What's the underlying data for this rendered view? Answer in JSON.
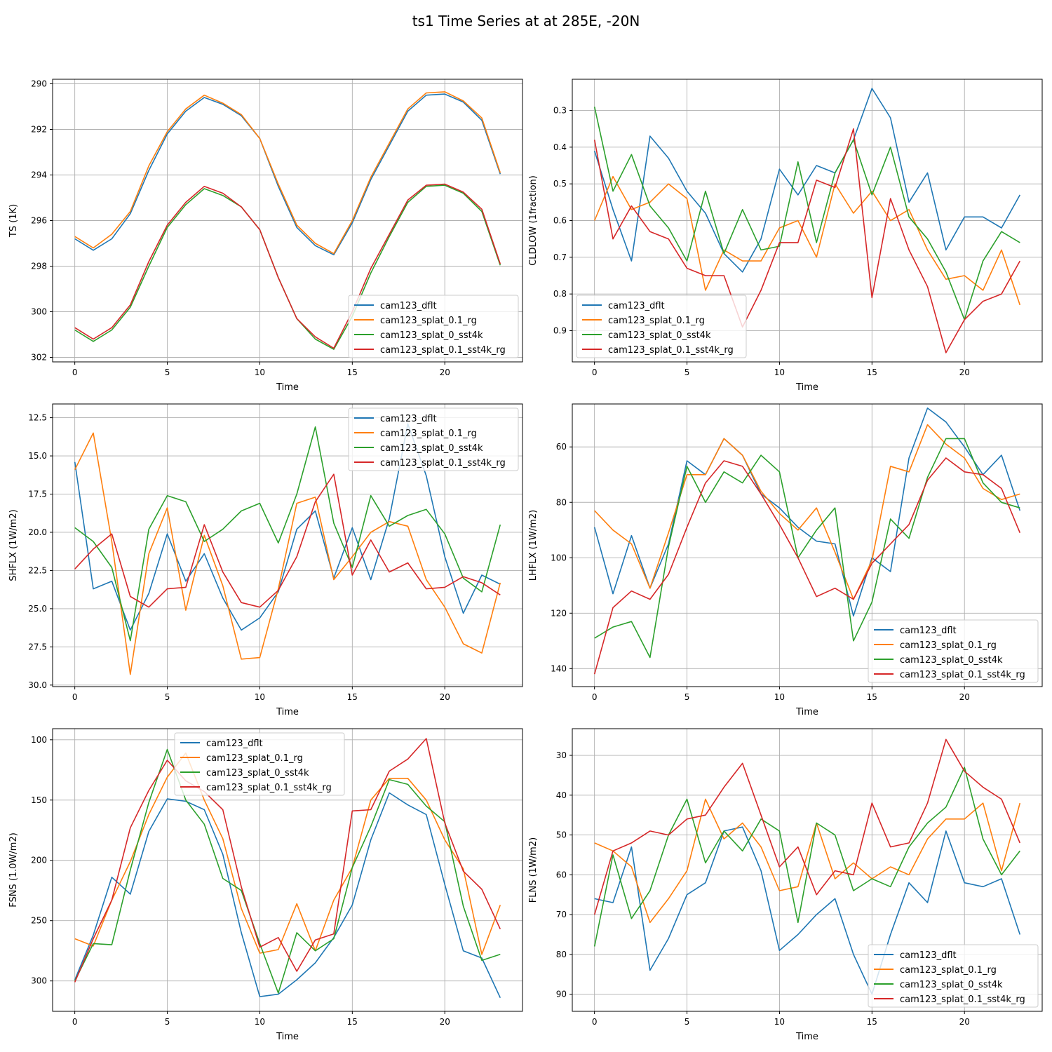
{
  "figure": {
    "title": "ts1 Time Series at at 285E, -20N"
  },
  "series_colors": [
    "#1f77b4",
    "#ff7f0e",
    "#2ca02c",
    "#d62728"
  ],
  "chart_data": [
    {
      "type": "line",
      "ylabel": "TS (1K)",
      "xlabel": "Time",
      "ylim": [
        302.2,
        289.8
      ],
      "y_inverted": true,
      "yticks": [
        290,
        292,
        294,
        296,
        298,
        300,
        302
      ],
      "yticklabels": [
        "290",
        "292",
        "294",
        "296",
        "298",
        "300",
        "302"
      ],
      "xlim": [
        -1.2,
        24.2
      ],
      "xticks": [
        0,
        5,
        10,
        15,
        20
      ],
      "xticklabels": [
        "0",
        "5",
        "10",
        "15",
        "20"
      ],
      "legend_loc": "lower-right",
      "x": [
        0,
        1,
        2,
        3,
        4,
        5,
        6,
        7,
        8,
        9,
        10,
        11,
        12,
        13,
        14,
        15,
        16,
        17,
        18,
        19,
        20,
        21,
        22,
        23
      ],
      "series": [
        {
          "name": "cam123_dflt",
          "values": [
            296.8,
            297.3,
            296.8,
            295.7,
            293.8,
            292.2,
            291.2,
            290.6,
            290.9,
            291.4,
            292.4,
            294.5,
            296.3,
            297.1,
            297.5,
            296.1,
            294.2,
            292.7,
            291.2,
            290.5,
            290.45,
            290.8,
            291.6,
            293.96
          ]
        },
        {
          "name": "cam123_splat_0.1_rg",
          "values": [
            296.7,
            297.2,
            296.6,
            295.6,
            293.6,
            292.1,
            291.1,
            290.5,
            290.85,
            291.35,
            292.4,
            294.4,
            296.2,
            297.0,
            297.45,
            296.0,
            294.1,
            292.6,
            291.1,
            290.4,
            290.35,
            290.75,
            291.5,
            293.9
          ]
        },
        {
          "name": "cam123_splat_0_sst4k",
          "values": [
            300.8,
            301.3,
            300.8,
            299.8,
            298.0,
            296.3,
            295.3,
            294.6,
            294.9,
            295.4,
            296.4,
            298.5,
            300.3,
            301.2,
            301.65,
            300.2,
            298.3,
            296.7,
            295.2,
            294.5,
            294.45,
            294.8,
            295.6,
            297.96
          ]
        },
        {
          "name": "cam123_splat_0.1_sst4k_rg",
          "values": [
            300.7,
            301.2,
            300.7,
            299.7,
            297.8,
            296.2,
            295.2,
            294.5,
            294.8,
            295.4,
            296.4,
            298.5,
            300.3,
            301.1,
            301.6,
            300.0,
            298.1,
            296.6,
            295.1,
            294.45,
            294.4,
            294.75,
            295.5,
            297.9
          ]
        }
      ]
    },
    {
      "type": "line",
      "ylabel": "CLDLOW (1fraction)",
      "xlabel": "Time",
      "ylim": [
        0.985,
        0.215
      ],
      "y_inverted": true,
      "yticks": [
        0.3,
        0.4,
        0.5,
        0.6,
        0.7,
        0.8,
        0.9
      ],
      "yticklabels": [
        "0.3",
        "0.4",
        "0.5",
        "0.6",
        "0.7",
        "0.8",
        "0.9"
      ],
      "xlim": [
        -1.2,
        24.2
      ],
      "xticks": [
        0,
        5,
        10,
        15,
        20
      ],
      "xticklabels": [
        "0",
        "5",
        "10",
        "15",
        "20"
      ],
      "legend_loc": "lower-left",
      "x": [
        0,
        1,
        2,
        3,
        4,
        5,
        6,
        7,
        8,
        9,
        10,
        11,
        12,
        13,
        14,
        15,
        16,
        17,
        18,
        19,
        20,
        21,
        22,
        23
      ],
      "series": [
        {
          "name": "cam123_dflt",
          "values": [
            0.41,
            0.57,
            0.71,
            0.37,
            0.43,
            0.52,
            0.58,
            0.69,
            0.74,
            0.65,
            0.46,
            0.53,
            0.45,
            0.47,
            0.38,
            0.24,
            0.32,
            0.55,
            0.47,
            0.68,
            0.59,
            0.59,
            0.62,
            0.53
          ]
        },
        {
          "name": "cam123_splat_0.1_rg",
          "values": [
            0.6,
            0.48,
            0.57,
            0.55,
            0.5,
            0.54,
            0.79,
            0.68,
            0.71,
            0.71,
            0.62,
            0.6,
            0.7,
            0.5,
            0.58,
            0.52,
            0.6,
            0.57,
            0.68,
            0.76,
            0.75,
            0.79,
            0.68,
            0.83
          ]
        },
        {
          "name": "cam123_splat_0_sst4k",
          "values": [
            0.29,
            0.52,
            0.42,
            0.56,
            0.62,
            0.71,
            0.52,
            0.69,
            0.57,
            0.68,
            0.67,
            0.44,
            0.66,
            0.47,
            0.38,
            0.53,
            0.4,
            0.59,
            0.65,
            0.74,
            0.87,
            0.71,
            0.63,
            0.66
          ]
        },
        {
          "name": "cam123_splat_0.1_sst4k_rg",
          "values": [
            0.38,
            0.65,
            0.56,
            0.63,
            0.65,
            0.73,
            0.75,
            0.75,
            0.89,
            0.79,
            0.66,
            0.66,
            0.49,
            0.51,
            0.35,
            0.81,
            0.54,
            0.68,
            0.78,
            0.96,
            0.87,
            0.82,
            0.8,
            0.71
          ]
        }
      ]
    },
    {
      "type": "line",
      "ylabel": "SHFLX (1W/m2)",
      "xlabel": "Time",
      "ylim": [
        30.1,
        11.6
      ],
      "y_inverted": true,
      "yticks": [
        12.5,
        15.0,
        17.5,
        20.0,
        22.5,
        25.0,
        27.5,
        30.0
      ],
      "yticklabels": [
        "12.5",
        "15.0",
        "17.5",
        "20.0",
        "22.5",
        "25.0",
        "27.5",
        "30.0"
      ],
      "xlim": [
        -1.2,
        24.2
      ],
      "xticks": [
        0,
        5,
        10,
        15,
        20
      ],
      "xticklabels": [
        "0",
        "5",
        "10",
        "15",
        "20"
      ],
      "legend_loc": "upper-right",
      "x": [
        0,
        1,
        2,
        3,
        4,
        5,
        6,
        7,
        8,
        9,
        10,
        11,
        12,
        13,
        14,
        15,
        16,
        17,
        18,
        19,
        20,
        21,
        22,
        23
      ],
      "series": [
        {
          "name": "cam123_dflt",
          "values": [
            15.4,
            23.7,
            23.2,
            26.4,
            24.0,
            20.1,
            23.2,
            21.4,
            24.3,
            26.4,
            25.6,
            23.9,
            19.8,
            18.6,
            23.0,
            19.7,
            23.1,
            19.1,
            12.9,
            16.3,
            21.6,
            25.3,
            22.8,
            23.4
          ]
        },
        {
          "name": "cam123_splat_0.1_rg",
          "values": [
            15.9,
            13.5,
            20.6,
            29.3,
            21.4,
            18.4,
            25.1,
            20.2,
            23.5,
            28.3,
            28.2,
            23.7,
            18.1,
            17.7,
            23.1,
            21.6,
            20.0,
            19.3,
            19.6,
            23.1,
            24.9,
            27.3,
            27.9,
            23.3
          ]
        },
        {
          "name": "cam123_splat_0_sst4k",
          "values": [
            19.7,
            20.6,
            22.3,
            27.1,
            19.8,
            17.6,
            18.0,
            20.6,
            19.8,
            18.6,
            18.1,
            20.7,
            17.5,
            13.1,
            19.4,
            22.3,
            17.6,
            19.6,
            18.9,
            18.5,
            20.1,
            23.0,
            23.9,
            19.5
          ]
        },
        {
          "name": "cam123_splat_0.1_sst4k_rg",
          "values": [
            22.4,
            21.1,
            20.1,
            24.2,
            24.9,
            23.7,
            23.6,
            19.5,
            22.6,
            24.6,
            24.9,
            23.8,
            21.6,
            18.0,
            16.2,
            22.8,
            20.5,
            22.6,
            22.0,
            23.7,
            23.6,
            22.9,
            23.3,
            24.1
          ]
        }
      ]
    },
    {
      "type": "line",
      "ylabel": "LHFLX (1W/m2)",
      "xlabel": "Time",
      "ylim": [
        146.5,
        44.5
      ],
      "y_inverted": true,
      "yticks": [
        60,
        80,
        100,
        120,
        140
      ],
      "yticklabels": [
        "60",
        "80",
        "100",
        "120",
        "140"
      ],
      "xlim": [
        -1.2,
        24.2
      ],
      "xticks": [
        0,
        5,
        10,
        15,
        20
      ],
      "xticklabels": [
        "0",
        "5",
        "10",
        "15",
        "20"
      ],
      "legend_loc": "lower-right",
      "x": [
        0,
        1,
        2,
        3,
        4,
        5,
        6,
        7,
        8,
        9,
        10,
        11,
        12,
        13,
        14,
        15,
        16,
        17,
        18,
        19,
        20,
        21,
        22,
        23
      ],
      "series": [
        {
          "name": "cam123_dflt",
          "values": [
            89,
            113,
            92,
            111,
            95,
            65,
            70,
            57,
            63,
            77,
            82,
            89,
            94,
            95,
            121,
            100,
            105,
            64,
            46,
            51,
            60,
            70,
            63,
            83
          ]
        },
        {
          "name": "cam123_splat_0.1_rg",
          "values": [
            83,
            90,
            95,
            111,
            91,
            70,
            70,
            57,
            63,
            76,
            84,
            90,
            82,
            98,
            115,
            101,
            67,
            69,
            52,
            59,
            64,
            75,
            79,
            77
          ]
        },
        {
          "name": "cam123_splat_0_sst4k",
          "values": [
            129,
            125,
            123,
            136,
            96,
            67,
            80,
            69,
            73,
            63,
            69,
            100,
            90,
            82,
            130,
            116,
            86,
            93,
            71,
            57,
            57,
            73,
            80,
            82
          ]
        },
        {
          "name": "cam123_splat_0.1_sst4k_rg",
          "values": [
            142,
            118,
            112,
            115,
            106,
            89,
            73,
            65,
            67,
            77,
            88,
            100,
            114,
            111,
            115,
            102,
            95,
            88,
            72,
            64,
            69,
            70,
            75,
            91
          ]
        }
      ]
    },
    {
      "type": "line",
      "ylabel": "FSNS (1.0W/m2)",
      "xlabel": "Time",
      "ylim": [
        325.2,
        90.8
      ],
      "y_inverted": true,
      "yticks": [
        100,
        150,
        200,
        250,
        300
      ],
      "yticklabels": [
        "100",
        "150",
        "200",
        "250",
        "300"
      ],
      "xlim": [
        -1.2,
        24.2
      ],
      "xticks": [
        0,
        5,
        10,
        15,
        20
      ],
      "xticklabels": [
        "0",
        "5",
        "10",
        "15",
        "20"
      ],
      "legend_loc": "upper-center",
      "x": [
        0,
        1,
        2,
        3,
        4,
        5,
        6,
        7,
        8,
        9,
        10,
        11,
        12,
        13,
        14,
        15,
        16,
        17,
        18,
        19,
        20,
        21,
        22,
        23
      ],
      "series": [
        {
          "name": "cam123_dflt",
          "values": [
            299,
            262,
            214,
            228,
            176,
            149,
            151,
            158,
            195,
            260,
            313,
            311,
            299,
            285,
            264,
            237,
            183,
            144,
            154,
            162,
            220,
            275,
            281,
            314
          ]
        },
        {
          "name": "cam123_splat_0.1_rg",
          "values": [
            265,
            271,
            233,
            201,
            162,
            131,
            111,
            150,
            182,
            240,
            277,
            274,
            236,
            275,
            233,
            206,
            150,
            132,
            132,
            150,
            183,
            207,
            278,
            237
          ]
        },
        {
          "name": "cam123_splat_0_sst4k",
          "values": [
            300,
            269,
            270,
            208,
            152,
            108,
            150,
            170,
            215,
            225,
            269,
            310,
            260,
            275,
            265,
            206,
            172,
            133,
            137,
            155,
            168,
            238,
            283,
            278
          ]
        },
        {
          "name": "cam123_splat_0.1_sst4k_rg",
          "values": [
            301,
            265,
            233,
            173,
            142,
            117,
            134,
            143,
            158,
            222,
            272,
            264,
            292,
            266,
            261,
            159,
            158,
            126,
            116,
            99,
            169,
            209,
            224,
            257
          ]
        }
      ]
    },
    {
      "type": "line",
      "ylabel": "FLNS (1W/m2)",
      "xlabel": "Time",
      "ylim": [
        94.3,
        23.3
      ],
      "y_inverted": true,
      "yticks": [
        30,
        40,
        50,
        60,
        70,
        80,
        90
      ],
      "yticklabels": [
        "30",
        "40",
        "50",
        "60",
        "70",
        "80",
        "90"
      ],
      "xlim": [
        -1.2,
        24.2
      ],
      "xticks": [
        0,
        5,
        10,
        15,
        20
      ],
      "xticklabels": [
        "0",
        "5",
        "10",
        "15",
        "20"
      ],
      "legend_loc": "lower-right",
      "x": [
        0,
        1,
        2,
        3,
        4,
        5,
        6,
        7,
        8,
        9,
        10,
        11,
        12,
        13,
        14,
        15,
        16,
        17,
        18,
        19,
        20,
        21,
        22,
        23
      ],
      "series": [
        {
          "name": "cam123_dflt",
          "values": [
            66,
            67,
            53,
            84,
            76,
            65,
            62,
            49,
            48,
            59,
            79,
            75,
            70,
            66,
            80,
            90,
            75,
            62,
            67,
            49,
            62,
            63,
            61,
            75
          ]
        },
        {
          "name": "cam123_splat_0.1_rg",
          "values": [
            52,
            54,
            58,
            72,
            66,
            59,
            41,
            51,
            47,
            53,
            64,
            63,
            47,
            61,
            57,
            61,
            58,
            60,
            51,
            46,
            46,
            42,
            59,
            42
          ]
        },
        {
          "name": "cam123_splat_0_sst4k",
          "values": [
            78,
            55,
            71,
            64,
            50,
            41,
            57,
            49,
            54,
            46,
            49,
            72,
            47,
            50,
            64,
            61,
            63,
            53,
            47,
            43,
            33,
            51,
            60,
            54
          ]
        },
        {
          "name": "cam123_splat_0.1_sst4k_rg",
          "values": [
            70,
            54,
            52,
            49,
            50,
            46,
            45,
            38,
            32,
            45,
            58,
            53,
            65,
            59,
            60,
            42,
            53,
            52,
            42,
            26,
            34,
            38,
            41,
            52
          ]
        }
      ]
    }
  ]
}
